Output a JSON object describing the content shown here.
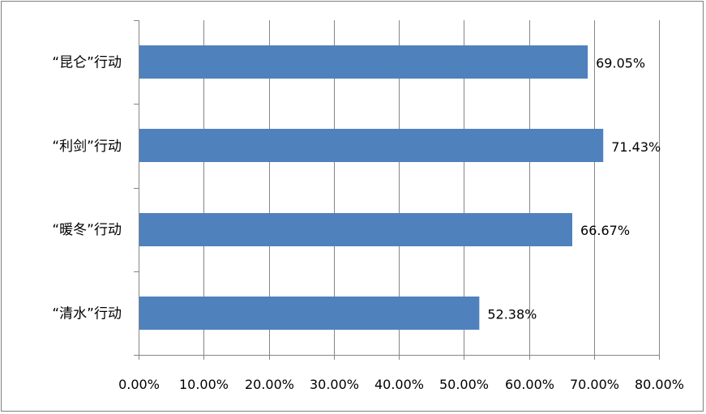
{
  "chart_data": {
    "type": "bar",
    "orientation": "horizontal",
    "categories": [
      "“昆仑”行动",
      "“利剑”行动",
      "“暖冬”行动",
      "“清水”行动"
    ],
    "values": [
      69.05,
      71.43,
      66.67,
      52.38
    ],
    "value_labels": [
      "69.05%",
      "71.43%",
      "66.67%",
      "52.38%"
    ],
    "xlim": [
      0,
      80
    ],
    "x_ticks": [
      0,
      10,
      20,
      30,
      40,
      50,
      60,
      70,
      80
    ],
    "x_tick_labels": [
      "0.00%",
      "10.00%",
      "20.00%",
      "30.00%",
      "40.00%",
      "50.00%",
      "60.00%",
      "70.00%",
      "80.00%"
    ],
    "grid": "vertical",
    "legend": "none",
    "bar_color": "#4f81bd",
    "grid_color": "#868686",
    "title": "",
    "xlabel": "",
    "ylabel": ""
  }
}
